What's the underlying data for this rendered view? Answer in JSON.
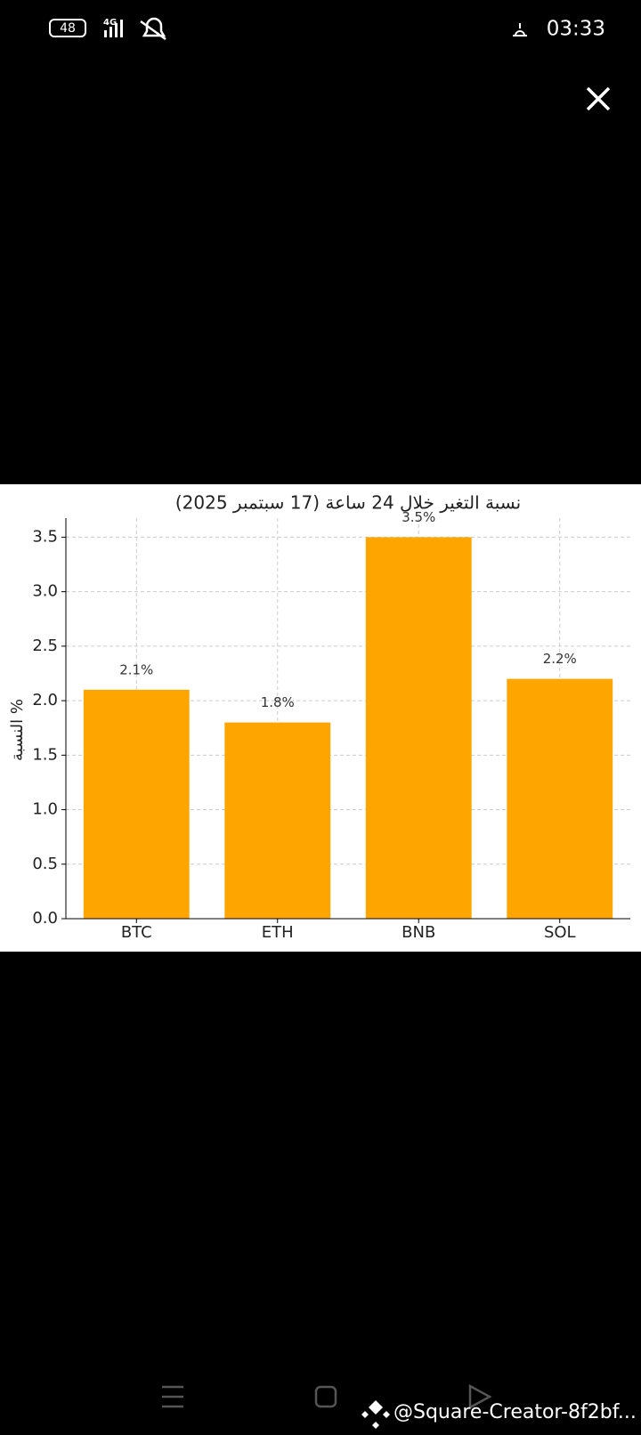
{
  "status_bar": {
    "battery": "48",
    "network": "4G",
    "time": "03:33"
  },
  "chart_data": {
    "type": "bar",
    "title": "نسبة التغير خلال 24 ساعة (17 سبتمبر 2025)",
    "y_label": "النسبة %",
    "categories": [
      "BTC",
      "ETH",
      "BNB",
      "SOL"
    ],
    "values": [
      2.1,
      1.8,
      3.5,
      2.2
    ],
    "value_labels": [
      "2.1%",
      "1.8%",
      "3.5%",
      "2.2%"
    ],
    "color": "#ffa500",
    "ylim": [
      0,
      3.675
    ],
    "yticks": [
      {
        "value": 0,
        "label": "0.0"
      },
      0.5,
      {
        "value": 1,
        "label": "1.0"
      },
      1.5,
      {
        "value": 2,
        "label": "2.0"
      },
      2.5,
      {
        "value": 3,
        "label": "3.0"
      },
      3.5
    ],
    "grid": true
  },
  "watermark": "@Square-Creator-8f2bf..."
}
